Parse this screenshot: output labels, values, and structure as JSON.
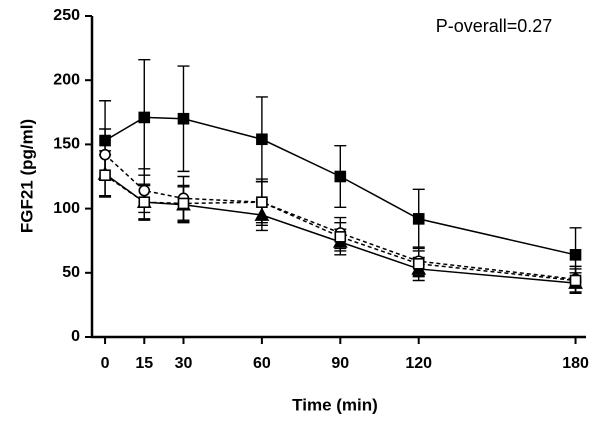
{
  "chart_data": {
    "type": "line",
    "annotation": "P-overall=0.27",
    "x_label": "Time (min)",
    "y_label": "FGF21 (pg/ml)",
    "x": [
      0,
      15,
      30,
      60,
      90,
      120,
      180
    ],
    "xlim": [
      -5,
      184
    ],
    "xticks": [
      0,
      15,
      30,
      60,
      90,
      120,
      180
    ],
    "ylim": [
      0,
      250
    ],
    "yticks": [
      0,
      50,
      100,
      150,
      200,
      250
    ],
    "series": [
      {
        "color": "#000000",
        "marker": "square",
        "filled": true,
        "dashed": false,
        "values": [
          153,
          171,
          170,
          154,
          125,
          92,
          64
        ],
        "errors": [
          31,
          45,
          41,
          33,
          24,
          23,
          21
        ]
      },
      {
        "color": "#000000",
        "marker": "triangle",
        "filled": true,
        "dashed": false,
        "values": [
          127,
          105,
          103,
          95,
          74,
          53,
          42
        ],
        "errors": [
          18,
          13,
          14,
          12,
          10,
          9,
          8
        ]
      },
      {
        "color": "#000000",
        "marker": "circle",
        "filled": false,
        "dashed": true,
        "values": [
          142,
          114,
          108,
          105,
          81,
          59,
          45
        ],
        "errors": [
          20,
          17,
          17,
          18,
          12,
          11,
          10
        ]
      },
      {
        "color": "#000000",
        "marker": "square",
        "filled": false,
        "dashed": true,
        "values": [
          126,
          105,
          104,
          105,
          78,
          57,
          44
        ],
        "errors": [
          16,
          14,
          14,
          16,
          11,
          10,
          9
        ]
      }
    ]
  }
}
